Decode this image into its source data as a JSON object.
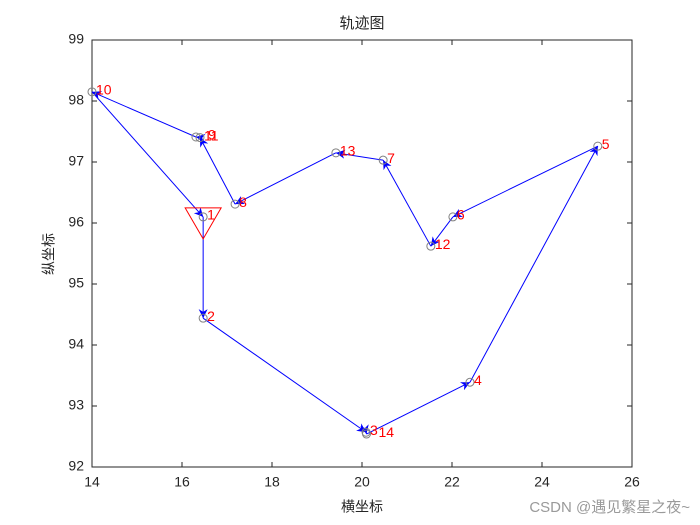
{
  "chart_data": {
    "type": "trajectory",
    "title": "轨迹图",
    "x_label": "横坐标",
    "y_label": "纵坐标",
    "labels": [
      "1",
      "2",
      "3",
      "14",
      "4",
      "5",
      "6",
      "12",
      "7",
      "13",
      "8",
      "11",
      "9",
      "10"
    ],
    "x": [
      16.47,
      16.47,
      20.09,
      20.1,
      22.4,
      25.24,
      22.02,
      21.53,
      20.47,
      19.42,
      17.18,
      16.4,
      16.31,
      14.0
    ],
    "y": [
      96.1,
      94.44,
      92.57,
      92.54,
      93.39,
      97.26,
      96.1,
      95.62,
      97.03,
      97.15,
      96.31,
      97.4,
      97.41,
      98.15
    ],
    "closed": true,
    "line_color": "#0000ff",
    "marker_color": "#808080",
    "label_color": "#ff0000",
    "start_marker_color": "#ff0000",
    "xlim": [
      14,
      26
    ],
    "xticks": [
      14,
      16,
      18,
      20,
      22,
      24,
      26
    ],
    "ylim": [
      92,
      99
    ],
    "yticks": [
      92,
      93,
      94,
      95,
      96,
      97,
      98,
      99
    ],
    "watermark": "CSDN @遇见繁星之夜~"
  }
}
